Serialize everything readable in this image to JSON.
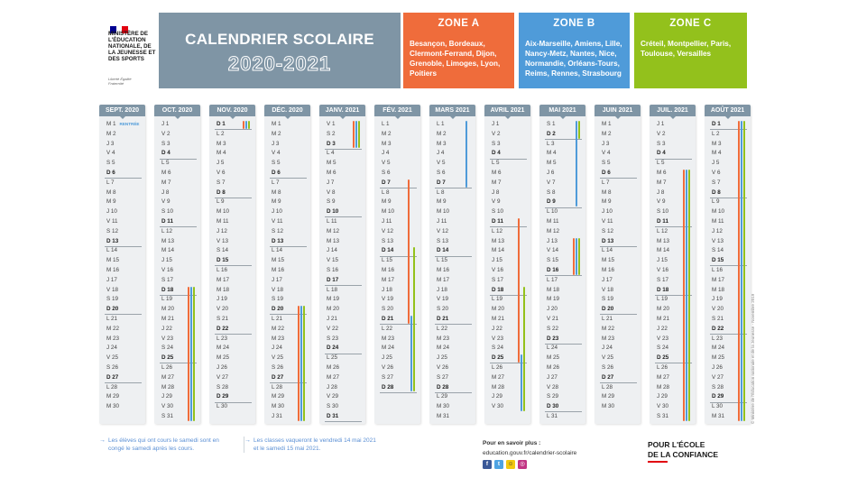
{
  "header": {
    "ministry_text": "Ministère de l'Éducation nationale, de la Jeunesse et des Sports",
    "motto": "Liberté Égalité Fraternité",
    "title": "CALENDRIER SCOLAIRE",
    "year": "2020-2021"
  },
  "colors": {
    "zone_a": "#ef6c3b",
    "zone_b": "#4f9bd9",
    "zone_c": "#93c11c",
    "header": "#7f95a5"
  },
  "zones": [
    {
      "id": "a",
      "label": "ZONE A",
      "cities": "Besançon, Bordeaux, Clermont-Ferrand, Dijon, Grenoble, Limoges, Lyon, Poitiers"
    },
    {
      "id": "b",
      "label": "ZONE B",
      "cities": "Aix-Marseille, Amiens, Lille, Nancy-Metz, Nantes, Nice, Normandie, Orléans-Tours, Reims, Rennes, Strasbourg"
    },
    {
      "id": "c",
      "label": "ZONE C",
      "cities": "Créteil, Montpellier, Paris, Toulouse, Versailles"
    }
  ],
  "rentree_label": "RENTRÉE",
  "months": [
    {
      "label": "SEPT. 2020",
      "start": 2,
      "days": 30,
      "holidays": []
    },
    {
      "label": "OCT. 2020",
      "start": 4,
      "days": 31,
      "holidays": [
        {
          "zone": "a",
          "from": 18,
          "to": 31
        },
        {
          "zone": "b",
          "from": 18,
          "to": 31
        },
        {
          "zone": "c",
          "from": 18,
          "to": 31
        }
      ]
    },
    {
      "label": "NOV. 2020",
      "start": 0,
      "days": 30,
      "holidays": [
        {
          "zone": "a",
          "from": 1,
          "to": 1
        },
        {
          "zone": "b",
          "from": 1,
          "to": 1
        },
        {
          "zone": "c",
          "from": 1,
          "to": 1
        }
      ]
    },
    {
      "label": "DÉC. 2020",
      "start": 2,
      "days": 31,
      "holidays": [
        {
          "zone": "a",
          "from": 20,
          "to": 31
        },
        {
          "zone": "b",
          "from": 20,
          "to": 31
        },
        {
          "zone": "c",
          "from": 20,
          "to": 31
        }
      ]
    },
    {
      "label": "JANV. 2021",
      "start": 5,
      "days": 31,
      "holidays": [
        {
          "zone": "a",
          "from": 1,
          "to": 3
        },
        {
          "zone": "b",
          "from": 1,
          "to": 3
        },
        {
          "zone": "c",
          "from": 1,
          "to": 3
        }
      ]
    },
    {
      "label": "FÉV. 2021",
      "start": 1,
      "days": 28,
      "holidays": [
        {
          "zone": "a",
          "from": 7,
          "to": 21
        },
        {
          "zone": "b",
          "from": 21,
          "to": 28
        },
        {
          "zone": "c",
          "from": 14,
          "to": 28
        }
      ]
    },
    {
      "label": "MARS 2021",
      "start": 1,
      "days": 31,
      "holidays": [
        {
          "zone": "b",
          "from": 1,
          "to": 7
        }
      ]
    },
    {
      "label": "AVRIL 2021",
      "start": 4,
      "days": 30,
      "holidays": [
        {
          "zone": "a",
          "from": 11,
          "to": 25
        },
        {
          "zone": "b",
          "from": 25,
          "to": 30
        },
        {
          "zone": "c",
          "from": 18,
          "to": 30
        }
      ]
    },
    {
      "label": "MAI 2021",
      "start": 6,
      "days": 31,
      "holidays": [
        {
          "zone": "b",
          "from": 1,
          "to": 9
        },
        {
          "zone": "c",
          "from": 1,
          "to": 2
        },
        {
          "zone": "a",
          "from": 13,
          "to": 16
        },
        {
          "zone": "b",
          "from": 13,
          "to": 16
        },
        {
          "zone": "c",
          "from": 13,
          "to": 16
        }
      ]
    },
    {
      "label": "JUIN 2021",
      "start": 2,
      "days": 30,
      "holidays": []
    },
    {
      "label": "JUIL. 2021",
      "start": 4,
      "days": 31,
      "holidays": [
        {
          "zone": "a",
          "from": 6,
          "to": 31
        },
        {
          "zone": "b",
          "from": 6,
          "to": 31
        },
        {
          "zone": "c",
          "from": 6,
          "to": 31
        }
      ]
    },
    {
      "label": "AOÛT 2021",
      "start": 0,
      "days": 31,
      "holidays": [
        {
          "zone": "a",
          "from": 1,
          "to": 31
        },
        {
          "zone": "b",
          "from": 1,
          "to": 31
        },
        {
          "zone": "c",
          "from": 1,
          "to": 31
        }
      ]
    }
  ],
  "weekday_letters": [
    "D",
    "L",
    "M",
    "M",
    "J",
    "V",
    "S"
  ],
  "footer": {
    "note_1": "Les élèves qui ont cours le samedi sont en congé le samedi après les cours.",
    "note_2": "Les classes vaqueront le vendredi 14 mai 2021 et le samedi 15 mai 2021.",
    "info_label": "Pour en savoir plus :",
    "info_url": "education.gouv.fr/calendrier-scolaire",
    "socials": [
      "facebook-icon",
      "twitter-icon",
      "snapchat-icon",
      "instagram-icon"
    ],
    "slogan_1": "POUR L'ÉCOLE",
    "slogan_2": "DE LA CONFIANCE",
    "credit": "© Ministère de l'Éducation nationale et de la Jeunesse - Novembre 2019"
  }
}
